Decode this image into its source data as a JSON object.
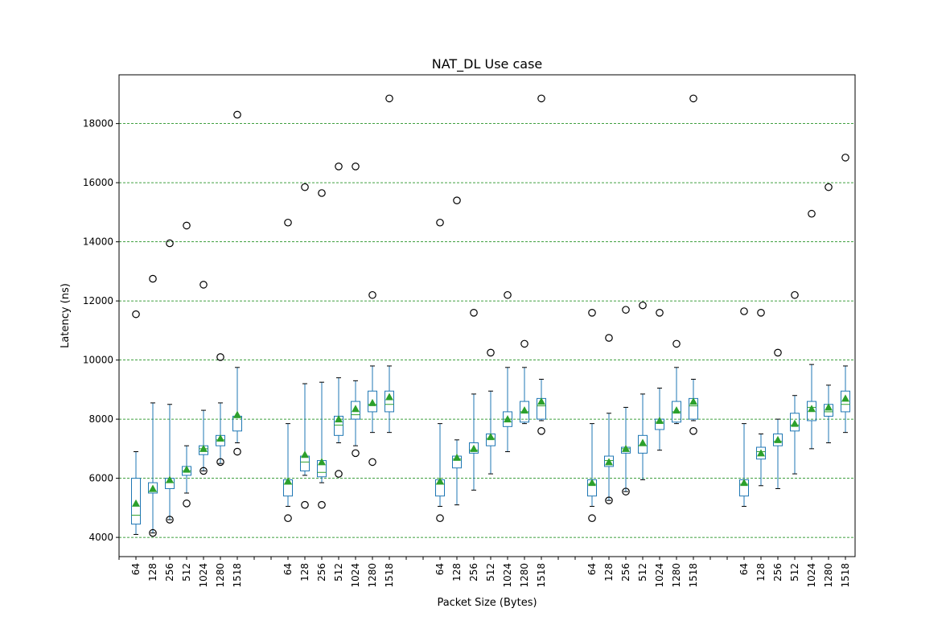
{
  "chart_data": {
    "type": "box",
    "title": "NAT_DL Use case",
    "xlabel": "Packet Size (Bytes)",
    "ylabel": "Latency (ns)",
    "ylim": [
      3350,
      19650
    ],
    "yticks": [
      4000,
      6000,
      8000,
      10000,
      12000,
      14000,
      16000,
      18000
    ],
    "grid": {
      "axis": "y",
      "color": "#008000",
      "style": "dashed"
    },
    "colors": {
      "box": "#1f77b4",
      "median": "#2ca02c",
      "mean_marker": "#2ca02c",
      "grid": "#008000",
      "outlier": "#000000"
    },
    "groups": [
      {
        "boxes": [
          {
            "label": "64",
            "whislo": 4100,
            "q1": 4450,
            "median": 4750,
            "q3": 6000,
            "whishi": 6900,
            "mean": 5150,
            "fliers": [
              11550
            ]
          },
          {
            "label": "128",
            "whislo": 4150,
            "q1": 5500,
            "median": 5550,
            "q3": 5850,
            "whishi": 8550,
            "mean": 5650,
            "fliers": [
              4150,
              12750
            ]
          },
          {
            "label": "256",
            "whislo": 4600,
            "q1": 5650,
            "median": 5850,
            "q3": 6000,
            "whishi": 8500,
            "mean": 5950,
            "fliers": [
              4600,
              13950
            ]
          },
          {
            "label": "512",
            "whislo": 5500,
            "q1": 6100,
            "median": 6250,
            "q3": 6400,
            "whishi": 7100,
            "mean": 6300,
            "fliers": [
              5150,
              14550
            ]
          },
          {
            "label": "1024",
            "whislo": 6250,
            "q1": 6800,
            "median": 7000,
            "q3": 7100,
            "whishi": 8300,
            "mean": 7000,
            "fliers": [
              6250,
              12550
            ]
          },
          {
            "label": "1280",
            "whislo": 6500,
            "q1": 7100,
            "median": 7300,
            "q3": 7450,
            "whishi": 8550,
            "mean": 7350,
            "fliers": [
              6550,
              10100
            ]
          },
          {
            "label": "1518",
            "whislo": 7200,
            "q1": 7600,
            "median": 8050,
            "q3": 8100,
            "whishi": 9750,
            "mean": 8150,
            "fliers": [
              6900,
              18300
            ]
          }
        ]
      },
      {
        "boxes": [
          {
            "label": "64",
            "whislo": 5050,
            "q1": 5400,
            "median": 5800,
            "q3": 5950,
            "whishi": 7850,
            "mean": 5900,
            "fliers": [
              4650,
              14650
            ]
          },
          {
            "label": "128",
            "whislo": 6100,
            "q1": 6250,
            "median": 6550,
            "q3": 6750,
            "whishi": 9200,
            "mean": 6800,
            "fliers": [
              5100,
              15850
            ]
          },
          {
            "label": "256",
            "whislo": 5850,
            "q1": 6050,
            "median": 6200,
            "q3": 6600,
            "whishi": 9250,
            "mean": 6550,
            "fliers": [
              5100,
              15650
            ]
          },
          {
            "label": "512",
            "whislo": 7200,
            "q1": 7450,
            "median": 7800,
            "q3": 8100,
            "whishi": 9400,
            "mean": 8000,
            "fliers": [
              6150,
              16550
            ]
          },
          {
            "label": "1024",
            "whislo": 7100,
            "q1": 8000,
            "median": 8150,
            "q3": 8600,
            "whishi": 9300,
            "mean": 8350,
            "fliers": [
              6850,
              16550
            ]
          },
          {
            "label": "1280",
            "whislo": 7550,
            "q1": 8250,
            "median": 8500,
            "q3": 8950,
            "whishi": 9800,
            "mean": 8550,
            "fliers": [
              6550,
              12200
            ]
          },
          {
            "label": "1518",
            "whislo": 7550,
            "q1": 8250,
            "median": 8500,
            "q3": 8950,
            "whishi": 9800,
            "mean": 8750,
            "fliers": [
              18850
            ]
          }
        ]
      },
      {
        "boxes": [
          {
            "label": "64",
            "whislo": 5050,
            "q1": 5400,
            "median": 5800,
            "q3": 5950,
            "whishi": 7850,
            "mean": 5900,
            "fliers": [
              4650,
              14650
            ]
          },
          {
            "label": "128",
            "whislo": 5100,
            "q1": 6350,
            "median": 6650,
            "q3": 6750,
            "whishi": 7300,
            "mean": 6700,
            "fliers": [
              15400
            ]
          },
          {
            "label": "256",
            "whislo": 5600,
            "q1": 6850,
            "median": 6950,
            "q3": 7200,
            "whishi": 8850,
            "mean": 7000,
            "fliers": [
              11600
            ]
          },
          {
            "label": "512",
            "whislo": 6150,
            "q1": 7100,
            "median": 7350,
            "q3": 7500,
            "whishi": 8950,
            "mean": 7400,
            "fliers": [
              10250
            ]
          },
          {
            "label": "1024",
            "whislo": 6900,
            "q1": 7750,
            "median": 8000,
            "q3": 8250,
            "whishi": 9750,
            "mean": 8000,
            "fliers": [
              12200
            ]
          },
          {
            "label": "1280",
            "whislo": 7850,
            "q1": 7900,
            "median": 8250,
            "q3": 8600,
            "whishi": 9750,
            "mean": 8300,
            "fliers": [
              10550
            ]
          },
          {
            "label": "1518",
            "whislo": 7950,
            "q1": 8000,
            "median": 8450,
            "q3": 8700,
            "whishi": 9350,
            "mean": 8600,
            "fliers": [
              7600,
              18850
            ]
          }
        ]
      },
      {
        "boxes": [
          {
            "label": "64",
            "whislo": 5050,
            "q1": 5400,
            "median": 5800,
            "q3": 5950,
            "whishi": 7850,
            "mean": 5850,
            "fliers": [
              4650,
              11600
            ]
          },
          {
            "label": "128",
            "whislo": 5250,
            "q1": 6400,
            "median": 6600,
            "q3": 6750,
            "whishi": 8200,
            "mean": 6550,
            "fliers": [
              5250,
              10750
            ]
          },
          {
            "label": "256",
            "whislo": 5550,
            "q1": 6850,
            "median": 7000,
            "q3": 7050,
            "whishi": 8400,
            "mean": 7000,
            "fliers": [
              5550,
              11700
            ]
          },
          {
            "label": "512",
            "whislo": 5950,
            "q1": 6850,
            "median": 7100,
            "q3": 7450,
            "whishi": 8850,
            "mean": 7200,
            "fliers": [
              11850
            ]
          },
          {
            "label": "1024",
            "whislo": 6950,
            "q1": 7650,
            "median": 7900,
            "q3": 8000,
            "whishi": 9050,
            "mean": 7950,
            "fliers": [
              11600
            ]
          },
          {
            "label": "1280",
            "whislo": 7850,
            "q1": 7900,
            "median": 8250,
            "q3": 8600,
            "whishi": 9750,
            "mean": 8300,
            "fliers": [
              10550
            ]
          },
          {
            "label": "1518",
            "whislo": 7950,
            "q1": 8000,
            "median": 8450,
            "q3": 8700,
            "whishi": 9350,
            "mean": 8600,
            "fliers": [
              7600,
              18850
            ]
          }
        ]
      },
      {
        "boxes": [
          {
            "label": "64",
            "whislo": 5050,
            "q1": 5400,
            "median": 5800,
            "q3": 5950,
            "whishi": 7850,
            "mean": 5850,
            "fliers": [
              11650
            ]
          },
          {
            "label": "128",
            "whislo": 5750,
            "q1": 6650,
            "median": 6900,
            "q3": 7050,
            "whishi": 7500,
            "mean": 6850,
            "fliers": [
              11600
            ]
          },
          {
            "label": "256",
            "whislo": 5650,
            "q1": 7100,
            "median": 7250,
            "q3": 7500,
            "whishi": 8000,
            "mean": 7300,
            "fliers": [
              10250
            ]
          },
          {
            "label": "512",
            "whislo": 6150,
            "q1": 7600,
            "median": 7800,
            "q3": 8200,
            "whishi": 8800,
            "mean": 7850,
            "fliers": [
              12200
            ]
          },
          {
            "label": "1024",
            "whislo": 7000,
            "q1": 7950,
            "median": 8400,
            "q3": 8600,
            "whishi": 9850,
            "mean": 8350,
            "fliers": [
              14950
            ]
          },
          {
            "label": "1280",
            "whislo": 7200,
            "q1": 8100,
            "median": 8250,
            "q3": 8500,
            "whishi": 9150,
            "mean": 8400,
            "fliers": [
              15850
            ]
          },
          {
            "label": "1518",
            "whislo": 7550,
            "q1": 8250,
            "median": 8500,
            "q3": 8950,
            "whishi": 9800,
            "mean": 8700,
            "fliers": [
              16850
            ]
          }
        ]
      }
    ]
  }
}
